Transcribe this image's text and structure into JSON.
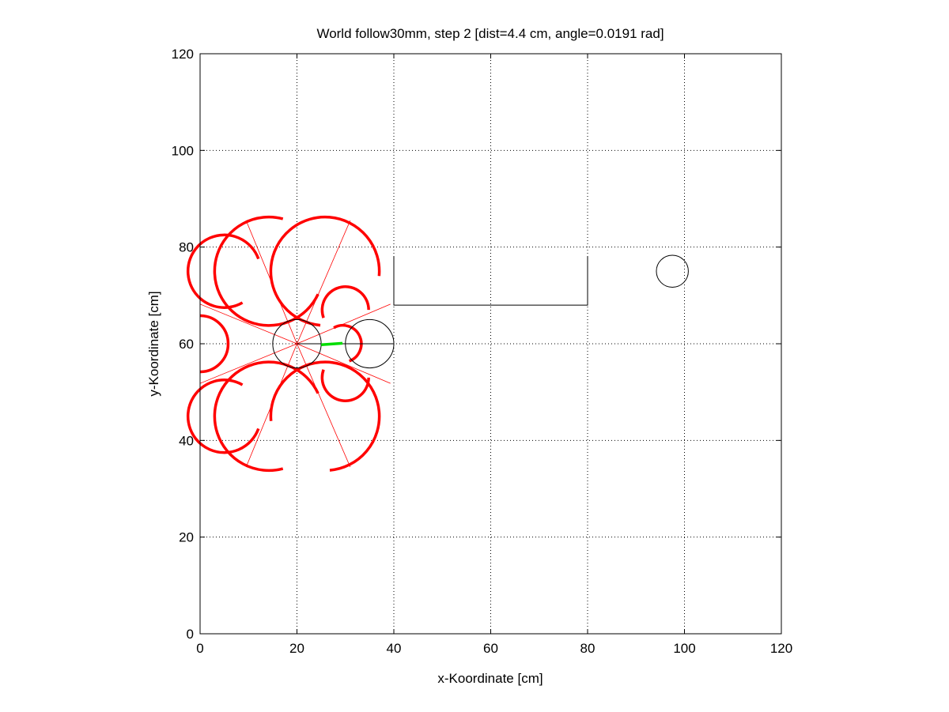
{
  "chart_data": {
    "type": "scatter",
    "title": "World follow30mm, step 2 [dist=4.4 cm, angle=0.0191 rad]",
    "xlabel": "x-Koordinate [cm]",
    "ylabel": "y-Koordinate [cm]",
    "xlim": [
      0,
      120
    ],
    "ylim": [
      0,
      120
    ],
    "xticks": [
      0,
      20,
      40,
      60,
      80,
      100,
      120
    ],
    "yticks": [
      0,
      20,
      40,
      60,
      80,
      100,
      120
    ],
    "grid": true,
    "colors": {
      "sensor": "#ff0000",
      "motion": "#00dd00",
      "object": "#000000"
    },
    "robots": [
      {
        "x": 20,
        "y": 60,
        "r": 5
      },
      {
        "x": 35,
        "y": 60,
        "r": 5
      }
    ],
    "wall": [
      [
        40,
        78
      ],
      [
        40,
        68
      ],
      [
        80,
        68
      ],
      [
        80,
        78
      ]
    ],
    "target": {
      "x": 97.5,
      "y": 75,
      "r": 3.3
    },
    "heading_line": [
      [
        20,
        60
      ],
      [
        40,
        60
      ]
    ],
    "motion_path": [
      [
        25,
        59.8
      ],
      [
        29.4,
        60.1
      ]
    ],
    "sensor_rays": [
      [
        [
          20,
          60
        ],
        [
          9.5,
          85.5
        ]
      ],
      [
        [
          20,
          60
        ],
        [
          31,
          85.5
        ]
      ],
      [
        [
          20,
          60
        ],
        [
          0,
          68.2
        ]
      ],
      [
        [
          20,
          60
        ],
        [
          0,
          51.8
        ]
      ],
      [
        [
          20,
          60
        ],
        [
          9.5,
          34.5
        ]
      ],
      [
        [
          20,
          60
        ],
        [
          31,
          34.5
        ]
      ],
      [
        [
          20,
          60
        ],
        [
          39.3,
          68.2
        ]
      ],
      [
        [
          20,
          60
        ],
        [
          39.3,
          51.8
        ]
      ]
    ],
    "sensor_arcs": [
      {
        "cx": 14.2,
        "cy": 75,
        "r": 11.2,
        "from": 75,
        "to": 335
      },
      {
        "cx": 25.8,
        "cy": 75,
        "r": 11.2,
        "from": -5,
        "to": 265
      },
      {
        "cx": 14.2,
        "cy": 45,
        "r": 11.2,
        "from": 25,
        "to": 285
      },
      {
        "cx": 25.8,
        "cy": 45,
        "r": 11.2,
        "from": -85,
        "to": 185
      },
      {
        "cx": 5,
        "cy": 75,
        "r": 7.5,
        "from": 20,
        "to": 300
      },
      {
        "cx": 5,
        "cy": 45,
        "r": 7.5,
        "from": 60,
        "to": 340
      },
      {
        "cx": 0,
        "cy": 60,
        "r": 5.8,
        "from": -90,
        "to": 90
      },
      {
        "cx": 30,
        "cy": 67,
        "r": 4.8,
        "from": 0,
        "to": 200
      },
      {
        "cx": 30,
        "cy": 53,
        "r": 4.8,
        "from": 160,
        "to": 360
      },
      {
        "cx": 29.5,
        "cy": 60,
        "r": 3.8,
        "from": -70,
        "to": 120
      }
    ]
  }
}
